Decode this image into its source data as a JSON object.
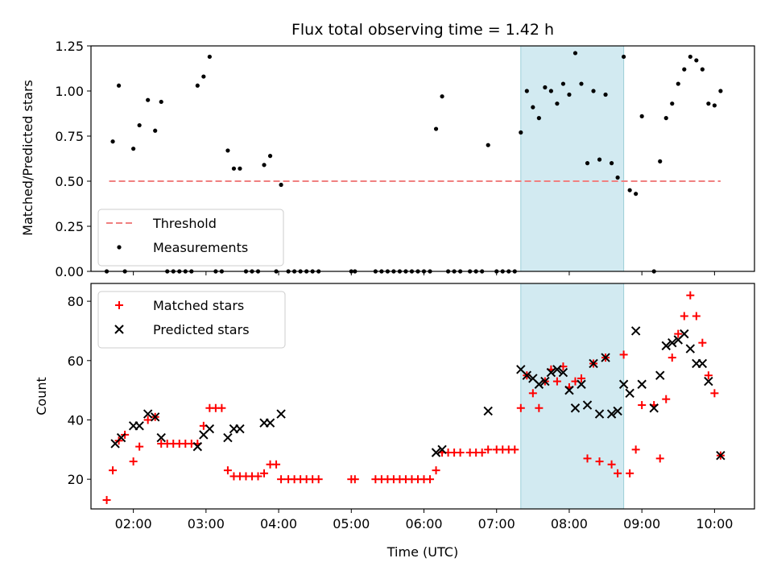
{
  "chart_data": [
    {
      "type": "scatter",
      "title": "Flux total observing time = 1.42 h",
      "xlabel": "",
      "ylabel": "Matched/Predicted stars",
      "xlim": [
        "01:25",
        "10:33"
      ],
      "ylim": [
        0,
        1.25
      ],
      "yticks": [
        "0.00",
        "0.25",
        "0.50",
        "0.75",
        "1.00",
        "1.25"
      ],
      "shaded_span": [
        "07:20",
        "08:45"
      ],
      "legend": {
        "position": "lower-left",
        "entries": [
          "Threshold",
          "Measurements"
        ]
      },
      "colors": {
        "threshold": "#f08080",
        "measurements": "#000000",
        "span": "#add8e6"
      },
      "series": [
        {
          "name": "Threshold",
          "style": "dashed-line",
          "x": [
            "01:40",
            "10:05"
          ],
          "y": [
            0.5,
            0.5
          ]
        },
        {
          "name": "Measurements",
          "style": "dot",
          "points": [
            [
              "01:38",
              0
            ],
            [
              "01:43",
              0.72
            ],
            [
              "01:48",
              1.03
            ],
            [
              "01:53",
              0
            ],
            [
              "02:00",
              0.68
            ],
            [
              "02:05",
              0.81
            ],
            [
              "02:12",
              0.95
            ],
            [
              "02:18",
              0.78
            ],
            [
              "02:23",
              0.94
            ],
            [
              "02:28",
              0
            ],
            [
              "02:33",
              0
            ],
            [
              "02:38",
              0
            ],
            [
              "02:43",
              0
            ],
            [
              "02:48",
              0
            ],
            [
              "02:53",
              1.03
            ],
            [
              "02:58",
              1.08
            ],
            [
              "03:03",
              1.19
            ],
            [
              "03:08",
              0
            ],
            [
              "03:13",
              0
            ],
            [
              "03:18",
              0.67
            ],
            [
              "03:23",
              0.57
            ],
            [
              "03:28",
              0.57
            ],
            [
              "03:33",
              0
            ],
            [
              "03:38",
              0
            ],
            [
              "03:43",
              0
            ],
            [
              "03:48",
              0.59
            ],
            [
              "03:53",
              0.64
            ],
            [
              "03:58",
              0
            ],
            [
              "04:02",
              0.48
            ],
            [
              "04:08",
              0
            ],
            [
              "04:13",
              0
            ],
            [
              "04:18",
              0
            ],
            [
              "04:23",
              0
            ],
            [
              "04:28",
              0
            ],
            [
              "04:33",
              0
            ],
            [
              "05:00",
              0
            ],
            [
              "05:03",
              0
            ],
            [
              "05:20",
              0
            ],
            [
              "05:25",
              0
            ],
            [
              "05:30",
              0
            ],
            [
              "05:35",
              0
            ],
            [
              "05:40",
              0
            ],
            [
              "05:45",
              0
            ],
            [
              "05:50",
              0
            ],
            [
              "05:55",
              0
            ],
            [
              "06:00",
              0
            ],
            [
              "06:05",
              0
            ],
            [
              "06:10",
              0.79
            ],
            [
              "06:15",
              0.97
            ],
            [
              "06:20",
              0
            ],
            [
              "06:25",
              0
            ],
            [
              "06:30",
              0
            ],
            [
              "06:38",
              0
            ],
            [
              "06:43",
              0
            ],
            [
              "06:48",
              0
            ],
            [
              "06:53",
              0.7
            ],
            [
              "07:00",
              0
            ],
            [
              "07:05",
              0
            ],
            [
              "07:10",
              0
            ],
            [
              "07:15",
              0
            ],
            [
              "07:20",
              0.77
            ],
            [
              "07:25",
              1.0
            ],
            [
              "07:30",
              0.91
            ],
            [
              "07:35",
              0.85
            ],
            [
              "07:40",
              1.02
            ],
            [
              "07:45",
              1.0
            ],
            [
              "07:50",
              0.93
            ],
            [
              "07:55",
              1.04
            ],
            [
              "08:00",
              0.98
            ],
            [
              "08:05",
              1.21
            ],
            [
              "08:10",
              1.04
            ],
            [
              "08:15",
              0.6
            ],
            [
              "08:20",
              1.0
            ],
            [
              "08:25",
              0.62
            ],
            [
              "08:30",
              0.98
            ],
            [
              "08:35",
              0.6
            ],
            [
              "08:40",
              0.52
            ],
            [
              "08:45",
              1.19
            ],
            [
              "08:50",
              0.45
            ],
            [
              "08:55",
              0.43
            ],
            [
              "09:00",
              0.86
            ],
            [
              "09:10",
              0
            ],
            [
              "09:15",
              0.61
            ],
            [
              "09:20",
              0.85
            ],
            [
              "09:25",
              0.93
            ],
            [
              "09:30",
              1.04
            ],
            [
              "09:35",
              1.12
            ],
            [
              "09:40",
              1.19
            ],
            [
              "09:45",
              1.17
            ],
            [
              "09:50",
              1.12
            ],
            [
              "09:55",
              0.93
            ],
            [
              "10:00",
              0.92
            ],
            [
              "10:05",
              1.0
            ]
          ]
        }
      ]
    },
    {
      "type": "scatter",
      "title": "",
      "xlabel": "Time (UTC)",
      "ylabel": "Count",
      "xlim": [
        "01:25",
        "10:33"
      ],
      "ylim": [
        10,
        86
      ],
      "yticks": [
        "20",
        "40",
        "60",
        "80"
      ],
      "xticks": [
        "02:00",
        "03:00",
        "04:00",
        "05:00",
        "06:00",
        "07:00",
        "08:00",
        "09:00",
        "10:00"
      ],
      "shaded_span": [
        "07:20",
        "08:45"
      ],
      "legend": {
        "position": "upper-left",
        "entries": [
          "Matched stars",
          "Predicted stars"
        ]
      },
      "colors": {
        "matched": "#ff0000",
        "predicted": "#000000",
        "span": "#add8e6"
      },
      "series": [
        {
          "name": "Matched stars",
          "marker": "plus",
          "points": [
            [
              "01:38",
              13
            ],
            [
              "01:43",
              23
            ],
            [
              "01:48",
              33
            ],
            [
              "01:53",
              35
            ],
            [
              "02:00",
              26
            ],
            [
              "02:05",
              31
            ],
            [
              "02:12",
              40
            ],
            [
              "02:18",
              41
            ],
            [
              "02:23",
              32
            ],
            [
              "02:28",
              32
            ],
            [
              "02:33",
              32
            ],
            [
              "02:38",
              32
            ],
            [
              "02:43",
              32
            ],
            [
              "02:48",
              32
            ],
            [
              "02:53",
              32
            ],
            [
              "02:58",
              38
            ],
            [
              "03:03",
              44
            ],
            [
              "03:08",
              44
            ],
            [
              "03:13",
              44
            ],
            [
              "03:18",
              23
            ],
            [
              "03:23",
              21
            ],
            [
              "03:28",
              21
            ],
            [
              "03:33",
              21
            ],
            [
              "03:38",
              21
            ],
            [
              "03:43",
              21
            ],
            [
              "03:48",
              22
            ],
            [
              "03:53",
              25
            ],
            [
              "03:58",
              25
            ],
            [
              "04:02",
              20
            ],
            [
              "04:08",
              20
            ],
            [
              "04:13",
              20
            ],
            [
              "04:18",
              20
            ],
            [
              "04:23",
              20
            ],
            [
              "04:28",
              20
            ],
            [
              "04:33",
              20
            ],
            [
              "05:00",
              20
            ],
            [
              "05:03",
              20
            ],
            [
              "05:20",
              20
            ],
            [
              "05:25",
              20
            ],
            [
              "05:30",
              20
            ],
            [
              "05:35",
              20
            ],
            [
              "05:40",
              20
            ],
            [
              "05:45",
              20
            ],
            [
              "05:50",
              20
            ],
            [
              "05:55",
              20
            ],
            [
              "06:00",
              20
            ],
            [
              "06:05",
              20
            ],
            [
              "06:10",
              23
            ],
            [
              "06:15",
              29
            ],
            [
              "06:20",
              29
            ],
            [
              "06:25",
              29
            ],
            [
              "06:30",
              29
            ],
            [
              "06:38",
              29
            ],
            [
              "06:43",
              29
            ],
            [
              "06:48",
              29
            ],
            [
              "06:53",
              30
            ],
            [
              "07:00",
              30
            ],
            [
              "07:05",
              30
            ],
            [
              "07:10",
              30
            ],
            [
              "07:15",
              30
            ],
            [
              "07:20",
              44
            ],
            [
              "07:25",
              55
            ],
            [
              "07:30",
              49
            ],
            [
              "07:35",
              44
            ],
            [
              "07:40",
              53
            ],
            [
              "07:45",
              57
            ],
            [
              "07:50",
              53
            ],
            [
              "07:55",
              58
            ],
            [
              "08:00",
              51
            ],
            [
              "08:05",
              53
            ],
            [
              "08:10",
              54
            ],
            [
              "08:15",
              27
            ],
            [
              "08:20",
              59
            ],
            [
              "08:25",
              26
            ],
            [
              "08:30",
              61
            ],
            [
              "08:35",
              25
            ],
            [
              "08:40",
              22
            ],
            [
              "08:45",
              62
            ],
            [
              "08:50",
              22
            ],
            [
              "08:55",
              30
            ],
            [
              "09:00",
              45
            ],
            [
              "09:10",
              45
            ],
            [
              "09:15",
              27
            ],
            [
              "09:20",
              47
            ],
            [
              "09:25",
              61
            ],
            [
              "09:30",
              69
            ],
            [
              "09:35",
              75
            ],
            [
              "09:40",
              82
            ],
            [
              "09:45",
              75
            ],
            [
              "09:50",
              66
            ],
            [
              "09:55",
              55
            ],
            [
              "10:00",
              49
            ],
            [
              "10:05",
              28
            ]
          ]
        },
        {
          "name": "Predicted stars",
          "marker": "x",
          "points": [
            [
              "01:45",
              32
            ],
            [
              "01:50",
              34
            ],
            [
              "02:00",
              38
            ],
            [
              "02:05",
              38
            ],
            [
              "02:12",
              42
            ],
            [
              "02:18",
              41
            ],
            [
              "02:23",
              34
            ],
            [
              "02:53",
              31
            ],
            [
              "02:58",
              35
            ],
            [
              "03:03",
              37
            ],
            [
              "03:18",
              34
            ],
            [
              "03:23",
              37
            ],
            [
              "03:28",
              37
            ],
            [
              "03:48",
              39
            ],
            [
              "03:53",
              39
            ],
            [
              "04:02",
              42
            ],
            [
              "06:10",
              29
            ],
            [
              "06:15",
              30
            ],
            [
              "06:53",
              43
            ],
            [
              "07:20",
              57
            ],
            [
              "07:25",
              55
            ],
            [
              "07:30",
              54
            ],
            [
              "07:35",
              52
            ],
            [
              "07:40",
              53
            ],
            [
              "07:45",
              56
            ],
            [
              "07:50",
              57
            ],
            [
              "07:55",
              56
            ],
            [
              "08:00",
              50
            ],
            [
              "08:05",
              44
            ],
            [
              "08:10",
              52
            ],
            [
              "08:15",
              45
            ],
            [
              "08:20",
              59
            ],
            [
              "08:25",
              42
            ],
            [
              "08:30",
              61
            ],
            [
              "08:35",
              42
            ],
            [
              "08:40",
              43
            ],
            [
              "08:45",
              52
            ],
            [
              "08:50",
              49
            ],
            [
              "08:55",
              70
            ],
            [
              "09:00",
              52
            ],
            [
              "09:10",
              44
            ],
            [
              "09:15",
              55
            ],
            [
              "09:20",
              65
            ],
            [
              "09:25",
              66
            ],
            [
              "09:30",
              67
            ],
            [
              "09:35",
              69
            ],
            [
              "09:40",
              64
            ],
            [
              "09:45",
              59
            ],
            [
              "09:50",
              59
            ],
            [
              "09:55",
              53
            ],
            [
              "10:05",
              28
            ]
          ]
        }
      ]
    }
  ]
}
